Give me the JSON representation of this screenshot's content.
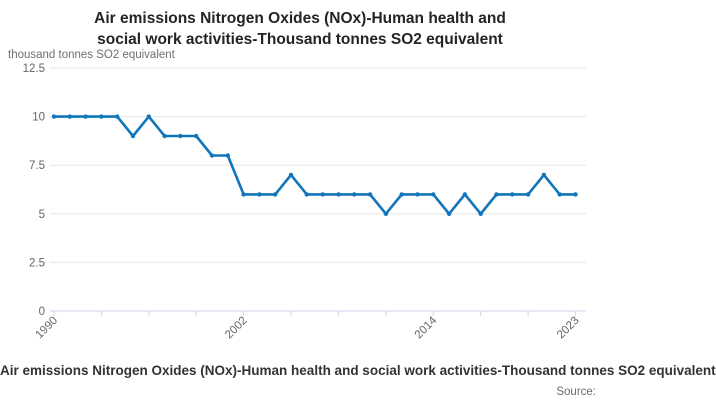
{
  "header": {
    "title_line1": "Air emissions Nitrogen Oxides (NOx)-Human health and",
    "title_line2": "social work activities-Thousand tonnes SO2 equivalent"
  },
  "footer": {
    "caption": "Air emissions Nitrogen Oxides (NOx)-Human health and social work activities-Thousand tonnes SO2 equivalent",
    "source_label": "Source:"
  },
  "chart_data": {
    "type": "line",
    "title": "Air emissions Nitrogen Oxides (NOx)-Human health and social work activities-Thousand tonnes SO2 equivalent",
    "ylabel": "thousand tonnes SO2 equivalent",
    "xlabel": "",
    "x": [
      1990,
      1991,
      1992,
      1993,
      1994,
      1995,
      1996,
      1997,
      1998,
      1999,
      2000,
      2001,
      2002,
      2003,
      2004,
      2005,
      2006,
      2007,
      2008,
      2009,
      2010,
      2011,
      2012,
      2013,
      2014,
      2015,
      2016,
      2017,
      2018,
      2019,
      2020,
      2021,
      2022,
      2023
    ],
    "values": [
      10,
      10,
      10,
      10,
      10,
      9,
      10,
      9,
      9,
      9,
      8,
      8,
      6,
      6,
      6,
      7,
      6,
      6,
      6,
      6,
      6,
      5,
      6,
      6,
      6,
      5,
      6,
      5,
      6,
      6,
      6,
      7,
      6,
      6
    ],
    "ylim": [
      0,
      12.5
    ],
    "yticks": [
      0,
      2.5,
      5,
      7.5,
      10,
      12.5
    ],
    "xticks": [
      1990,
      1993,
      1996,
      1999,
      2002,
      2005,
      2008,
      2011,
      2014,
      2017,
      2020,
      2023
    ],
    "xtick_labels_shown": [
      1990,
      2002,
      2014,
      2023
    ],
    "grid": "horizontal",
    "legend": "none",
    "marker": "circle",
    "line_color": "#1175bc",
    "grid_color": "#e6e6e6",
    "axis_color": "#ccd6eb",
    "tick_text_color": "#666666"
  }
}
